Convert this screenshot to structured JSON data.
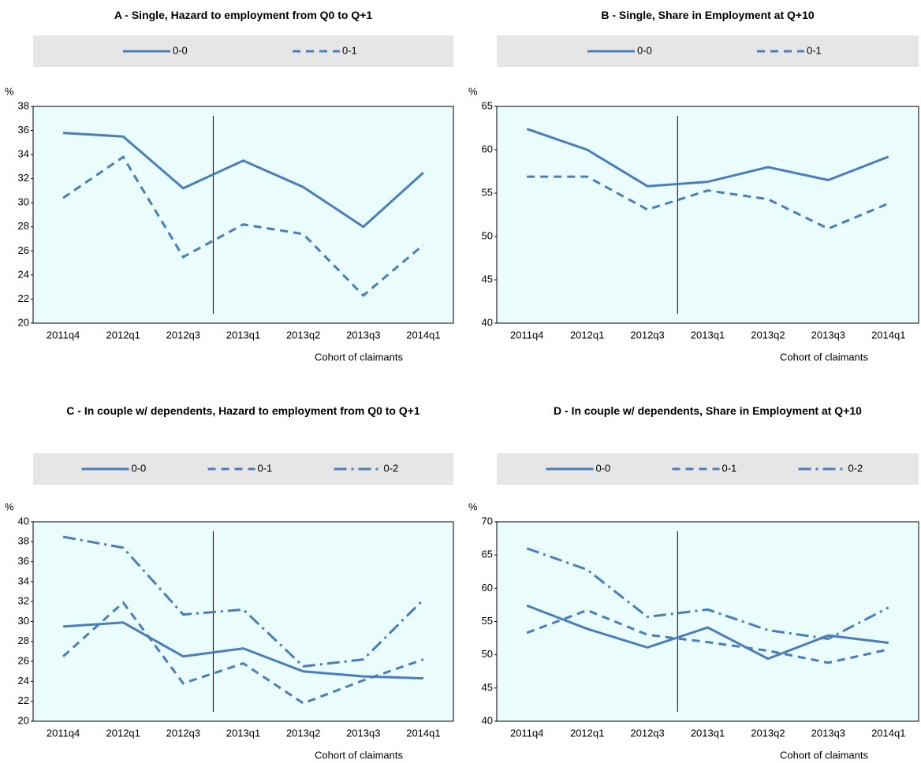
{
  "chart_data": [
    {
      "type": "line",
      "title": "A - Single, Hazard to employment from Q0 to Q+1",
      "y_unit": "%",
      "xlabel": "Cohort of claimants",
      "categories": [
        "2011q4",
        "2012q1",
        "2012q3",
        "2013q1",
        "2013q2",
        "2013q3",
        "2014q1"
      ],
      "ylim": [
        20,
        38
      ],
      "yticks": [
        20,
        22,
        24,
        26,
        28,
        30,
        32,
        34,
        36,
        38
      ],
      "series": [
        {
          "name": "0-0",
          "color": "#4a7ebb",
          "line_style": "solid",
          "values": [
            35.8,
            35.5,
            31.2,
            33.5,
            31.3,
            28.0,
            32.5
          ]
        },
        {
          "name": "0-1",
          "color": "#4a7ebb",
          "line_style": "dashed",
          "values": [
            30.4,
            33.8,
            25.5,
            28.2,
            27.4,
            22.3,
            26.5
          ]
        }
      ]
    },
    {
      "type": "line",
      "title": "B - Single, Share in Employment at Q+10",
      "y_unit": "%",
      "xlabel": "Cohort of claimants",
      "categories": [
        "2011q4",
        "2012q1",
        "2012q3",
        "2013q1",
        "2013q2",
        "2013q3",
        "2014q1"
      ],
      "ylim": [
        40,
        65
      ],
      "yticks": [
        40,
        45,
        50,
        55,
        60,
        65
      ],
      "series": [
        {
          "name": "0-0",
          "color": "#4a7ebb",
          "line_style": "solid",
          "values": [
            62.4,
            60.0,
            55.8,
            56.3,
            58.0,
            56.5,
            59.2
          ]
        },
        {
          "name": "0-1",
          "color": "#4a7ebb",
          "line_style": "dashed",
          "values": [
            56.9,
            56.9,
            53.1,
            55.3,
            54.3,
            50.9,
            53.8
          ]
        }
      ]
    },
    {
      "type": "line",
      "title": "C - In couple w/ dependents, Hazard to employment from Q0 to Q+1",
      "y_unit": "%",
      "xlabel": "Cohort of claimants",
      "categories": [
        "2011q4",
        "2012q1",
        "2012q3",
        "2013q1",
        "2013q2",
        "2013q3",
        "2014q1"
      ],
      "ylim": [
        20,
        40
      ],
      "yticks": [
        20,
        22,
        24,
        26,
        28,
        30,
        32,
        34,
        36,
        38,
        40
      ],
      "series": [
        {
          "name": "0-0",
          "color": "#4a7ebb",
          "line_style": "solid",
          "values": [
            29.5,
            29.9,
            26.5,
            27.3,
            25.0,
            24.5,
            24.3
          ]
        },
        {
          "name": "0-1",
          "color": "#4a7ebb",
          "line_style": "dashed",
          "values": [
            26.5,
            31.9,
            23.8,
            25.8,
            21.8,
            24.1,
            26.2
          ]
        },
        {
          "name": "0-2",
          "color": "#4a7ebb",
          "line_style": "dashdot",
          "values": [
            38.5,
            37.4,
            30.7,
            31.2,
            25.5,
            26.2,
            32.2
          ]
        }
      ]
    },
    {
      "type": "line",
      "title": "D - In couple w/ dependents, Share in Employment at Q+10",
      "y_unit": "%",
      "xlabel": "Cohort of claimants",
      "categories": [
        "2011q4",
        "2012q1",
        "2012q3",
        "2013q1",
        "2013q2",
        "2013q3",
        "2014q1"
      ],
      "ylim": [
        40,
        70
      ],
      "yticks": [
        40,
        45,
        50,
        55,
        60,
        65,
        70
      ],
      "series": [
        {
          "name": "0-0",
          "color": "#4a7ebb",
          "line_style": "solid",
          "values": [
            57.4,
            53.9,
            51.1,
            54.1,
            49.4,
            52.9,
            51.8
          ]
        },
        {
          "name": "0-1",
          "color": "#4a7ebb",
          "line_style": "dashed",
          "values": [
            53.3,
            56.7,
            53.0,
            51.9,
            50.6,
            48.8,
            50.8
          ]
        },
        {
          "name": "0-2",
          "color": "#4a7ebb",
          "line_style": "dashdot",
          "values": [
            66.0,
            62.8,
            55.7,
            56.8,
            53.7,
            52.4,
            57.1
          ]
        }
      ]
    }
  ]
}
